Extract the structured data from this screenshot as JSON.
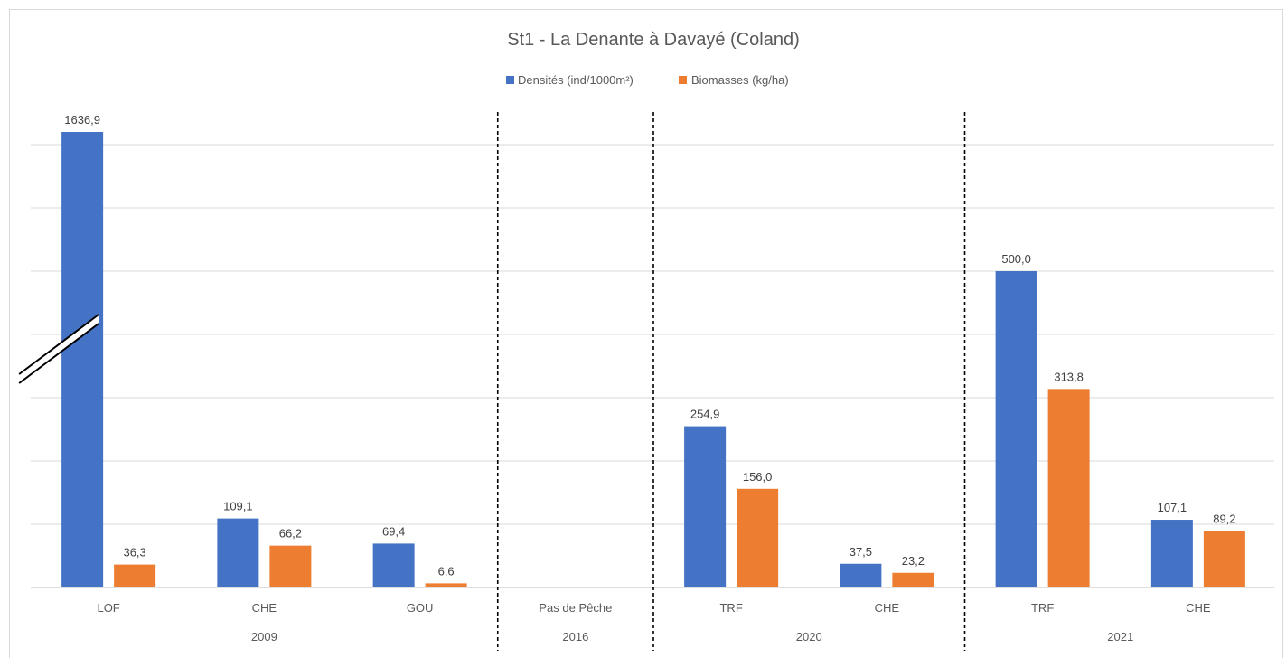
{
  "chart_data": {
    "type": "bar",
    "title": "St1 - La Denante à Davayé (Coland)",
    "legend_position": "top",
    "grid": true,
    "series": [
      {
        "name": "Densités (ind/1000m²)",
        "color": "#4472c4"
      },
      {
        "name": "Biomasses  (kg/ha)",
        "color": "#ed7d31"
      }
    ],
    "groups": [
      {
        "year": "2009",
        "items": [
          {
            "category": "LOF",
            "values": [
              1636.9,
              36.3
            ],
            "labels": [
              "1636,9",
              "36,3"
            ],
            "axis_break": true
          },
          {
            "category": "CHE",
            "values": [
              109.1,
              66.2
            ],
            "labels": [
              "109,1",
              "66,2"
            ]
          },
          {
            "category": "GOU",
            "values": [
              69.4,
              6.6
            ],
            "labels": [
              "69,4",
              "6,6"
            ]
          }
        ]
      },
      {
        "year": "2016",
        "items": [
          {
            "category": "Pas de Pêche",
            "values": [
              null,
              null
            ],
            "labels": [
              "",
              ""
            ]
          }
        ]
      },
      {
        "year": "2020",
        "items": [
          {
            "category": "TRF",
            "values": [
              254.9,
              156.0
            ],
            "labels": [
              "254,9",
              "156,0"
            ]
          },
          {
            "category": "CHE",
            "values": [
              37.5,
              23.2
            ],
            "labels": [
              "37,5",
              "23,2"
            ]
          }
        ]
      },
      {
        "year": "2021",
        "items": [
          {
            "category": "TRF",
            "values": [
              500.0,
              313.8
            ],
            "labels": [
              "500,0",
              "313,8"
            ]
          },
          {
            "category": "CHE",
            "values": [
              107.1,
              89.2
            ],
            "labels": [
              "107,1",
              "89,2"
            ]
          }
        ]
      }
    ],
    "ylim": [
      0,
      700
    ]
  }
}
